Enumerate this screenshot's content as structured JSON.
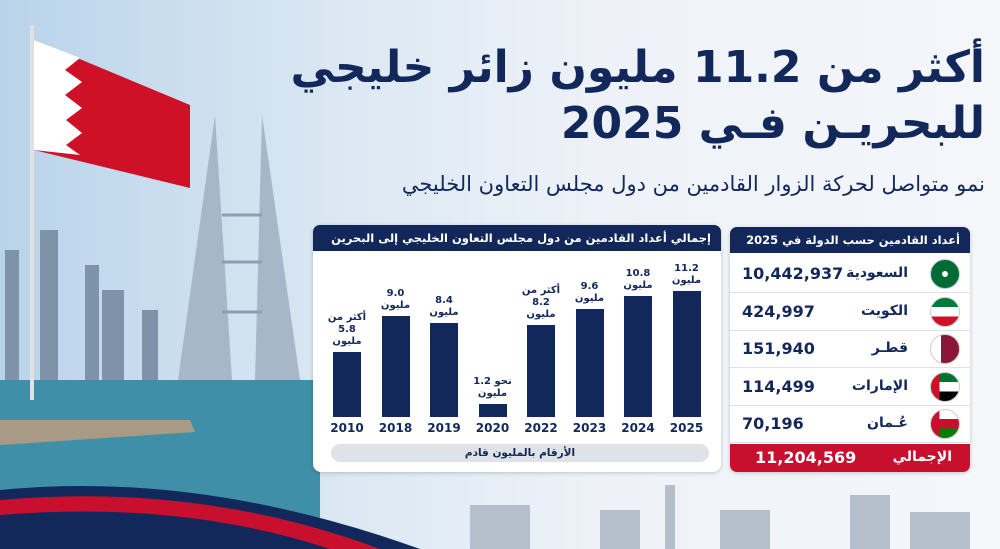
{
  "header": {
    "title_line1": "أكثر من 11.2 مليون زائر خليجي",
    "title_line2": "للبحريـن فـي 2025",
    "subtitle": "نمو متواصل لحركة الزوار القادمين من دول مجلس التعاون الخليجي"
  },
  "chart_data": {
    "type": "bar",
    "title": "إجمالي أعداد القادمين من دول مجلس التعاون الخليجي إلى البحرين",
    "categories": [
      "2010",
      "2018",
      "2019",
      "2020",
      "2022",
      "2023",
      "2024",
      "2025"
    ],
    "values": [
      5.8,
      9.0,
      8.4,
      1.2,
      8.2,
      9.6,
      10.8,
      11.2
    ],
    "value_labels": [
      "أكثر من 5.8 مليون",
      "9.0 مليون",
      "8.4 مليون",
      "نحو 1.2 مليون",
      "أكثر من 8.2 مليون",
      "9.6 مليون",
      "10.8 مليون",
      "11.2 مليون"
    ],
    "note": "الأرقام بالمليون قادم",
    "color": "#13285a"
  },
  "table": {
    "title": "أعداد القادمين حسب الدولة في 2025",
    "rows": [
      [
        "السعودية",
        "10,442,937"
      ],
      [
        "الكويت",
        "424,997"
      ],
      [
        "قطـر",
        "151,940"
      ],
      [
        "الإمارات",
        "114,499"
      ],
      [
        "عُـمان",
        "70,196"
      ]
    ],
    "total_label": "الإجمالي",
    "total": "11,204,569"
  }
}
